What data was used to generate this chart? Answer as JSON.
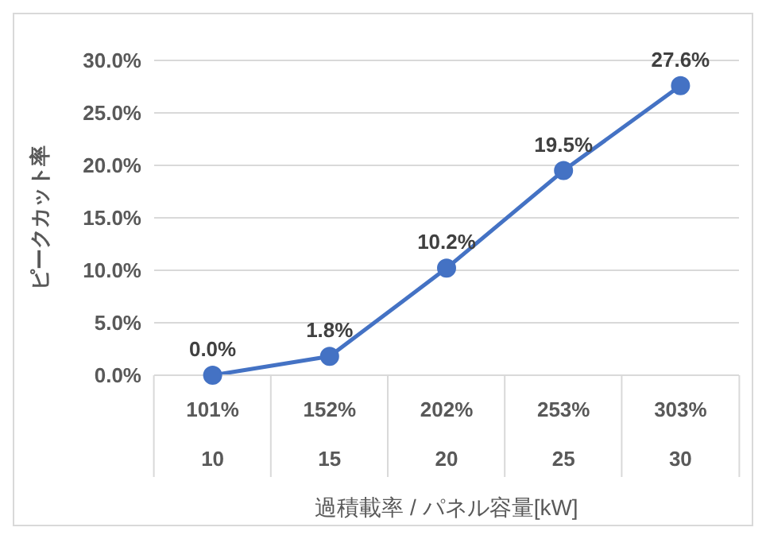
{
  "chart_data": {
    "type": "line",
    "xlabel": "過積載率 / パネル容量[kW]",
    "ylabel": "ピークカット率",
    "categories": [
      "101%\n10",
      "152%\n15",
      "202%\n20",
      "253%\n25",
      "303%\n30"
    ],
    "series": [
      {
        "color": "#4472c4",
        "values": [
          0,
          1.8,
          10.2,
          19.5,
          27.6
        ],
        "value_labels": [
          "0.0%",
          "1.8%",
          "10.2%",
          "19.5%",
          "27.6%"
        ]
      }
    ],
    "ylim": [
      0,
      30
    ],
    "yticks": [
      {
        "value": 0,
        "label": "0.0%"
      },
      {
        "value": 5,
        "label": "5.0%"
      },
      {
        "value": 10,
        "label": "10.0%"
      },
      {
        "value": 15,
        "label": "15.0%"
      },
      {
        "value": 20,
        "label": "20.0%"
      },
      {
        "value": 25,
        "label": "25.0%"
      },
      {
        "value": 30,
        "label": "30.0%"
      }
    ],
    "grid": "y",
    "marker": "circle",
    "line_style": "solid",
    "legend": false
  }
}
